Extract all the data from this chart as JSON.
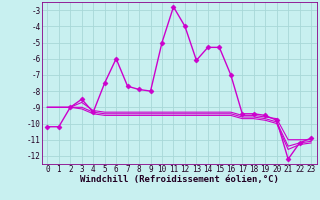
{
  "xlabel": "Windchill (Refroidissement éolien,°C)",
  "background_color": "#c8f0f0",
  "grid_color": "#a8d8d8",
  "line_color": "#cc00cc",
  "ylim": [
    -12.5,
    -2.5
  ],
  "xlim": [
    -0.5,
    23.5
  ],
  "yticks": [
    -12,
    -11,
    -10,
    -9,
    -8,
    -7,
    -6,
    -5,
    -4,
    -3
  ],
  "xticks": [
    0,
    1,
    2,
    3,
    4,
    5,
    6,
    7,
    8,
    9,
    10,
    11,
    12,
    13,
    14,
    15,
    16,
    17,
    18,
    19,
    20,
    21,
    22,
    23
  ],
  "lines": [
    {
      "x": [
        0,
        1,
        2,
        3,
        4,
        5,
        6,
        7,
        8,
        9,
        10,
        11,
        12,
        13,
        14,
        15,
        16,
        17,
        18,
        19,
        20,
        21,
        22,
        23
      ],
      "y": [
        -10.2,
        -10.2,
        -9.0,
        -8.5,
        -9.3,
        -7.5,
        -6.0,
        -7.7,
        -7.9,
        -8.0,
        -5.0,
        -2.8,
        -4.0,
        -6.1,
        -5.3,
        -5.3,
        -7.0,
        -9.4,
        -9.4,
        -9.5,
        -9.8,
        -12.2,
        -11.2,
        -10.9
      ],
      "marker": "D",
      "markersize": 2.5,
      "linewidth": 1.0
    },
    {
      "x": [
        0,
        1,
        2,
        3,
        4,
        5,
        6,
        7,
        8,
        9,
        10,
        11,
        12,
        13,
        14,
        15,
        16,
        17,
        18,
        19,
        20,
        21,
        22,
        23
      ],
      "y": [
        -9.0,
        -9.0,
        -9.0,
        -8.7,
        -9.2,
        -9.3,
        -9.3,
        -9.3,
        -9.3,
        -9.3,
        -9.3,
        -9.3,
        -9.3,
        -9.3,
        -9.3,
        -9.3,
        -9.3,
        -9.5,
        -9.5,
        -9.6,
        -9.7,
        -11.0,
        -11.0,
        -11.0
      ],
      "marker": null,
      "markersize": 0,
      "linewidth": 0.8
    },
    {
      "x": [
        0,
        1,
        2,
        3,
        4,
        5,
        6,
        7,
        8,
        9,
        10,
        11,
        12,
        13,
        14,
        15,
        16,
        17,
        18,
        19,
        20,
        21,
        22,
        23
      ],
      "y": [
        -9.0,
        -9.0,
        -9.0,
        -9.0,
        -9.3,
        -9.4,
        -9.4,
        -9.4,
        -9.4,
        -9.4,
        -9.4,
        -9.4,
        -9.4,
        -9.4,
        -9.4,
        -9.4,
        -9.4,
        -9.6,
        -9.6,
        -9.7,
        -9.9,
        -11.4,
        -11.2,
        -11.1
      ],
      "marker": null,
      "markersize": 0,
      "linewidth": 0.8
    },
    {
      "x": [
        0,
        1,
        2,
        3,
        4,
        5,
        6,
        7,
        8,
        9,
        10,
        11,
        12,
        13,
        14,
        15,
        16,
        17,
        18,
        19,
        20,
        21,
        22,
        23
      ],
      "y": [
        -9.0,
        -9.0,
        -9.0,
        -9.1,
        -9.4,
        -9.5,
        -9.5,
        -9.5,
        -9.5,
        -9.5,
        -9.5,
        -9.5,
        -9.5,
        -9.5,
        -9.5,
        -9.5,
        -9.5,
        -9.7,
        -9.7,
        -9.8,
        -10.0,
        -11.6,
        -11.3,
        -11.2
      ],
      "marker": null,
      "markersize": 0,
      "linewidth": 0.8
    }
  ],
  "tick_fontsize": 5.5,
  "xlabel_fontsize": 6.5,
  "spine_color": "#880088"
}
